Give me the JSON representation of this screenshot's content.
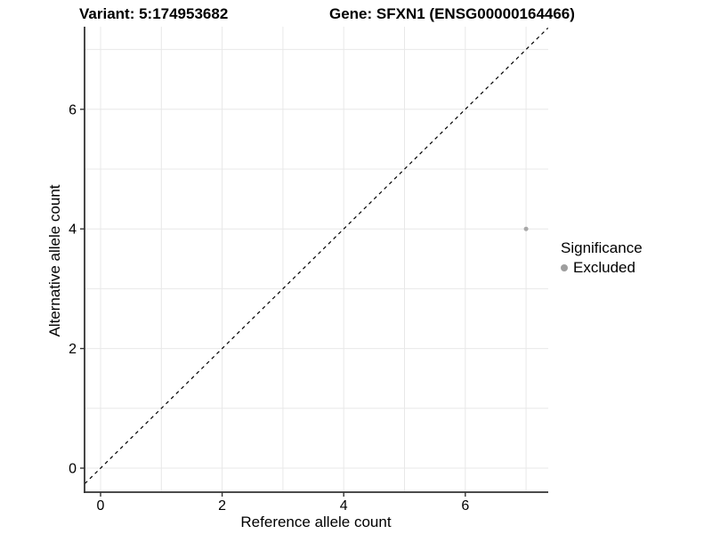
{
  "titles": {
    "variant": "Variant: 5:174953682",
    "gene": "Gene: SFXN1 (ENSG00000164466)"
  },
  "axes": {
    "x_title": "Reference allele count",
    "y_title": "Alternative allele count"
  },
  "legend": {
    "title": "Significance",
    "items": [
      {
        "label": "Excluded",
        "color": "#9e9e9e"
      }
    ]
  },
  "chart_data": {
    "type": "scatter",
    "title": "Variant: 5:174953682 / Gene: SFXN1 (ENSG00000164466)",
    "xlabel": "Reference allele count",
    "ylabel": "Alternative allele count",
    "xlim": [
      -0.26,
      7.36
    ],
    "ylim": [
      -0.4,
      7.38
    ],
    "xticks": [
      0,
      2,
      4,
      6
    ],
    "yticks": [
      0,
      2,
      4,
      6
    ],
    "gridlines_at": [
      0,
      1,
      2,
      3,
      4,
      5,
      6,
      7
    ],
    "grid": true,
    "legend_position": "right",
    "series": [
      {
        "name": "Excluded",
        "color": "#a8a8a8",
        "points": [
          {
            "x": 7,
            "y": 4
          }
        ]
      }
    ],
    "reference_line": {
      "equation": "y = x",
      "style": "dashed",
      "color": "#000000"
    },
    "colors": {
      "grid": "#e8e8e8",
      "axis": "#333333",
      "tick_text": "#000000",
      "background": "#ffffff"
    }
  }
}
